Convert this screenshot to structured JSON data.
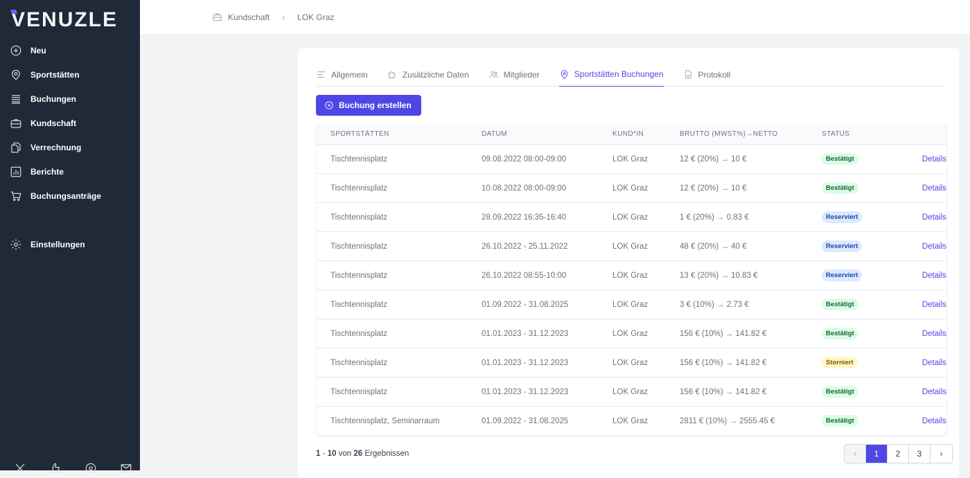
{
  "brand": "VENUZLE",
  "sidebar": {
    "items": [
      {
        "label": "Neu",
        "icon": "plus-circle-icon"
      },
      {
        "label": "Sportstätten",
        "icon": "map-pin-icon"
      },
      {
        "label": "Buchungen",
        "icon": "list-icon"
      },
      {
        "label": "Kundschaft",
        "icon": "briefcase-icon"
      },
      {
        "label": "Verrechnung",
        "icon": "documents-icon"
      },
      {
        "label": "Berichte",
        "icon": "chart-icon"
      },
      {
        "label": "Buchungsanträge",
        "icon": "cart-icon"
      }
    ],
    "settings": "Einstellungen"
  },
  "breadcrumb": {
    "parent": "Kundschaft",
    "current": "LOK Graz"
  },
  "tabs": [
    "Allgemein",
    "Zusätzliche Daten",
    "Mitglieder",
    "Sportstätten Buchungen",
    "Protokoll"
  ],
  "create_button": "Buchung erstellen",
  "table": {
    "headers": [
      "SPORTSTÄTTEN",
      "DATUM",
      "KUND*IN",
      "BRUTTO (MWST%)→NETTO",
      "STATUS"
    ],
    "rows": [
      [
        "Tischtennisplatz",
        "09.08.2022 08:00-09:00",
        "LOK Graz",
        "12 € (20%) → 10 €",
        "Bestätigt",
        "Details"
      ],
      [
        "Tischtennisplatz",
        "10.08.2022 08:00-09:00",
        "LOK Graz",
        "12 € (20%) → 10 €",
        "Bestätigt",
        "Details"
      ],
      [
        "Tischtennisplatz",
        "28.09.2022 16:35-16:40",
        "LOK Graz",
        "1 € (20%) → 0.83 €",
        "Reserviert",
        "Details"
      ],
      [
        "Tischtennisplatz",
        "26.10.2022 - 25.11.2022",
        "LOK Graz",
        "48 € (20%) → 40 €",
        "Reserviert",
        "Details"
      ],
      [
        "Tischtennisplatz",
        "26.10.2022 08:55-10:00",
        "LOK Graz",
        "13 € (20%) → 10.83 €",
        "Reserviert",
        "Details"
      ],
      [
        "Tischtennisplatz",
        "01.09.2022 - 31.08.2025",
        "LOK Graz",
        "3 € (10%) → 2.73 €",
        "Bestätigt",
        "Details"
      ],
      [
        "Tischtennisplatz",
        "01.01.2023 - 31.12.2023",
        "LOK Graz",
        "156 € (10%) → 141.82 €",
        "Bestätigt",
        "Details"
      ],
      [
        "Tischtennisplatz",
        "01.01.2023 - 31.12.2023",
        "LOK Graz",
        "156 € (10%) → 141.82 €",
        "Storniert",
        "Details"
      ],
      [
        "Tischtennisplatz",
        "01.01.2023 - 31.12.2023",
        "LOK Graz",
        "156 € (10%) → 141.82 €",
        "Bestätigt",
        "Details"
      ],
      [
        "Tischtennisplatz, Seminarraum",
        "01.09.2022 - 31.08.2025",
        "LOK Graz",
        "2811 € (10%) → 2555.45 €",
        "Bestätigt",
        "Details"
      ]
    ]
  },
  "footer": {
    "from": "1",
    "to": "10",
    "of": "von",
    "total": "26",
    "label": "Ergebnissen"
  },
  "pagination": {
    "prev": "‹",
    "pages": [
      "1",
      "2",
      "3"
    ],
    "next": "›"
  }
}
